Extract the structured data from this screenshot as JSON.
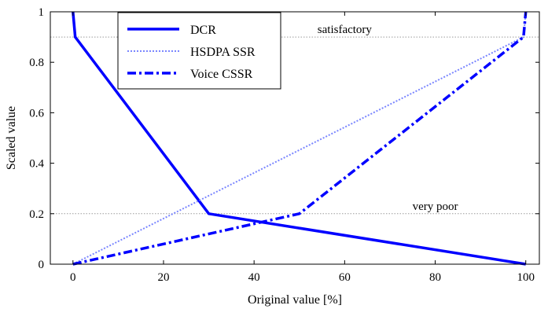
{
  "chart_data": {
    "type": "line",
    "xlabel": "Original value [%]",
    "ylabel": "Scaled value",
    "xlim": [
      -5,
      103
    ],
    "ylim": [
      0,
      1
    ],
    "xticks": [
      0,
      20,
      40,
      60,
      80,
      100
    ],
    "yticks": [
      0,
      0.2,
      0.4,
      0.6,
      0.8,
      1
    ],
    "xtick_labels": [
      "0",
      "20",
      "40",
      "60",
      "80",
      "100"
    ],
    "ytick_labels": [
      "0",
      "0.2",
      "0.4",
      "0.6",
      "0.8",
      "1"
    ],
    "grid": false,
    "reference_lines": [
      {
        "y": 0.9,
        "label": "satisfactory",
        "label_x": 60
      },
      {
        "y": 0.2,
        "label": "very poor",
        "label_x": 80
      }
    ],
    "legend": {
      "position": "top-left-inside"
    },
    "series": [
      {
        "name": "DCR",
        "style": "solid",
        "color": "#0000ff",
        "x": [
          0,
          0.5,
          30,
          100
        ],
        "y": [
          1,
          0.9,
          0.2,
          0
        ]
      },
      {
        "name": "HSDPA SSR",
        "style": "dotted",
        "color": "#7a86ff",
        "x": [
          0,
          99.5,
          100
        ],
        "y": [
          0,
          0.9,
          1
        ]
      },
      {
        "name": "Voice CSSR",
        "style": "dashdot",
        "color": "#0000ff",
        "x": [
          0,
          50,
          99.5,
          100
        ],
        "y": [
          0,
          0.2,
          0.9,
          1
        ]
      }
    ]
  }
}
